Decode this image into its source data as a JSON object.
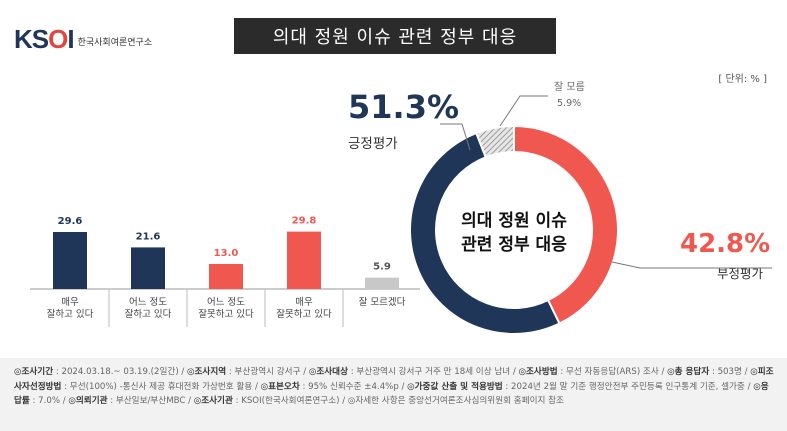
{
  "logo": {
    "brand_main": "KS",
    "brand_o": "O",
    "brand_end": "I",
    "subtitle": "한국사회여론연구소"
  },
  "title": "의대 정원 이슈 관련 정부 대응",
  "unit": "[ 단위: % ]",
  "colors": {
    "navy": "#1f3658",
    "red": "#f0574f",
    "gray": "#c8c8c8"
  },
  "chart_data": [
    {
      "type": "bar",
      "categories": [
        "매우\n잘하고 있다",
        "어느 정도\n잘하고 있다",
        "어느 정도\n잘못하고 있다",
        "매우\n잘못하고 있다",
        "잘 모르겠다"
      ],
      "values": [
        29.6,
        21.6,
        13.0,
        29.8,
        5.9
      ],
      "value_labels": [
        "29.6",
        "21.6",
        "13.0",
        "29.8",
        "5.9"
      ],
      "colors": [
        "#1f3658",
        "#1f3658",
        "#f0574f",
        "#f0574f",
        "#c8c8c8"
      ],
      "label_colors": [
        "#1f3658",
        "#1f3658",
        "#f0574f",
        "#f0574f",
        "#555555"
      ],
      "ylim": [
        0,
        35
      ]
    },
    {
      "type": "pie",
      "center_label": [
        "의대 정원 이슈",
        "관련 정부 대응"
      ],
      "slices": [
        {
          "name": "부정평가",
          "value": 42.8,
          "value_label": "42.8%",
          "color": "#f0574f"
        },
        {
          "name": "긍정평가",
          "value": 51.3,
          "value_label": "51.3%",
          "color": "#1f3658"
        },
        {
          "name": "잘 모름",
          "value": 5.9,
          "value_label": "5.9%",
          "color": "#b0b0b0"
        }
      ]
    }
  ],
  "footer": {
    "items": [
      {
        "k": "◎조사기간",
        "v": " : 2024.03.18.~ 03.19.(2일간)"
      },
      {
        "k": "◎조사지역",
        "v": " : 부산광역시 강서구"
      },
      {
        "k": "◎조사대상",
        "v": " : 부산광역시 강서구 거주 만 18세 이상 남녀"
      },
      {
        "k": "◎조사방법",
        "v": " : 무선 자동응답(ARS) 조사"
      },
      {
        "k": "◎총 응답자",
        "v": " : 503명"
      },
      {
        "k": "◎피조사자선정방법",
        "v": " : 무선(100%) -통신사 제공 휴대전화 가상번호 활용"
      },
      {
        "k": "◎표본오차",
        "v": " : 95% 신뢰수준 ±4.4%p"
      },
      {
        "k": "◎가중값 산출 및 적용방법",
        "v": " : 2024년 2월 말 기준 행정안전부 주민등록 인구통계 기준, 셀가중"
      },
      {
        "k": "◎응답률",
        "v": " : 7.0%"
      },
      {
        "k": "◎의뢰기관",
        "v": " : 부산일보/부산MBC"
      },
      {
        "k": "◎조사기관",
        "v": " : KSOI(한국사회여론연구소)"
      },
      {
        "k": "",
        "v": "◎자세한 사항은 중앙선거여론조사심의위원회 홈페이지 참조"
      }
    ]
  }
}
